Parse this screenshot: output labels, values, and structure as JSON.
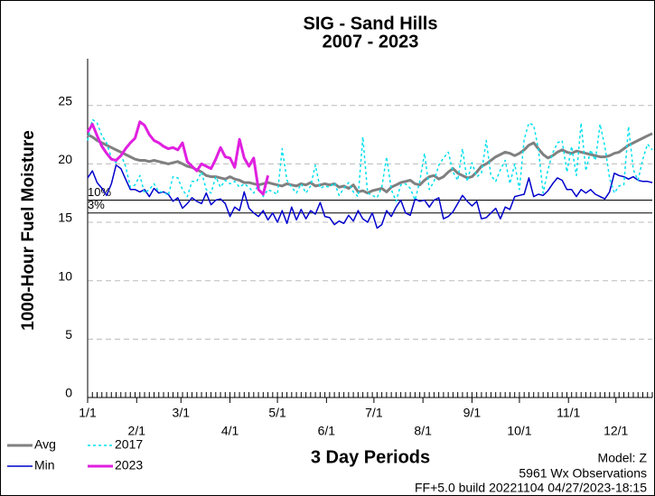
{
  "chart_data": {
    "type": "line",
    "title": "SIG - Sand Hills",
    "subtitle": "2007 - 2023",
    "y_label": "1000-Hour Fuel Moisture",
    "x_label": "3 Day Periods",
    "notes": [
      "Model: Z",
      "5961 Wx Observations",
      "FF+5.0 build 20221104 04/27/2023-18:15"
    ],
    "xlim": [
      0,
      357
    ],
    "ylim": [
      0,
      29
    ],
    "yticks": [
      0,
      5,
      10,
      15,
      20,
      25
    ],
    "xticks": [
      {
        "value": 0,
        "label": "1/1"
      },
      {
        "value": 31,
        "label": "2/1"
      },
      {
        "value": 59,
        "label": "3/1"
      },
      {
        "value": 90,
        "label": "4/1"
      },
      {
        "value": 120,
        "label": "5/1"
      },
      {
        "value": 151,
        "label": "6/1"
      },
      {
        "value": 181,
        "label": "7/1"
      },
      {
        "value": 212,
        "label": "8/1"
      },
      {
        "value": 243,
        "label": "9/1"
      },
      {
        "value": 273,
        "label": "10/1"
      },
      {
        "value": 304,
        "label": "11/1"
      },
      {
        "value": 334,
        "label": "12/1"
      }
    ],
    "grid": true,
    "thresholds": [
      {
        "label": "10%",
        "value": 16.9
      },
      {
        "label": "3%",
        "value": 15.8
      }
    ],
    "x": [
      0,
      3,
      6,
      9,
      12,
      15,
      18,
      21,
      24,
      27,
      30,
      33,
      36,
      39,
      42,
      45,
      48,
      51,
      54,
      57,
      60,
      63,
      66,
      69,
      72,
      75,
      78,
      81,
      84,
      87,
      90,
      93,
      96,
      99,
      102,
      105,
      108,
      111,
      114,
      117,
      120,
      123,
      126,
      129,
      132,
      135,
      138,
      141,
      144,
      147,
      150,
      153,
      156,
      159,
      162,
      165,
      168,
      171,
      174,
      177,
      180,
      183,
      186,
      189,
      192,
      195,
      198,
      201,
      204,
      207,
      210,
      213,
      216,
      219,
      222,
      225,
      228,
      231,
      234,
      237,
      240,
      243,
      246,
      249,
      252,
      255,
      258,
      261,
      264,
      267,
      270,
      273,
      276,
      279,
      282,
      285,
      288,
      291,
      294,
      297,
      300,
      303,
      306,
      309,
      312,
      315,
      318,
      321,
      324,
      327,
      330,
      333,
      336,
      339,
      342,
      345,
      348,
      351,
      354,
      357
    ],
    "series": [
      {
        "name": "Avg",
        "color": "#808080",
        "line_style": "solid",
        "values": [
          22.5,
          22.3,
          22.0,
          21.8,
          21.6,
          21.4,
          21.2,
          21.0,
          20.8,
          20.6,
          20.4,
          20.3,
          20.3,
          20.2,
          20.3,
          20.2,
          20.1,
          20.0,
          20.1,
          20.2,
          20.0,
          19.8,
          19.7,
          19.5,
          19.3,
          19.0,
          18.9,
          18.9,
          18.8,
          18.7,
          18.9,
          18.7,
          18.6,
          18.4,
          18.4,
          18.3,
          18.2,
          18.3,
          18.4,
          18.3,
          18.2,
          18.1,
          18.3,
          18.2,
          18.1,
          18.3,
          18.2,
          18.4,
          18.1,
          18.2,
          18.3,
          18.2,
          18.3,
          18.0,
          18.1,
          17.9,
          18.2,
          17.6,
          17.7,
          17.5,
          17.7,
          17.8,
          17.9,
          17.6,
          18.0,
          18.2,
          18.4,
          18.5,
          18.6,
          18.3,
          18.2,
          18.6,
          18.9,
          19.0,
          18.7,
          18.9,
          19.3,
          19.6,
          19.2,
          19.0,
          18.8,
          18.9,
          19.3,
          19.8,
          20.0,
          20.3,
          20.6,
          20.8,
          21.0,
          20.9,
          20.7,
          20.9,
          21.2,
          21.6,
          21.8,
          21.3,
          20.8,
          20.5,
          20.7,
          21.0,
          21.2,
          21.0,
          20.9,
          21.1,
          21.0,
          20.9,
          20.8,
          20.7,
          20.6,
          20.6,
          20.7,
          20.9,
          21.0,
          21.3,
          21.6,
          21.8,
          22.0,
          22.2,
          22.4,
          22.6
        ]
      },
      {
        "name": "Min",
        "color": "#0000cc",
        "line_style": "solid",
        "values": [
          18.8,
          19.4,
          18.4,
          17.9,
          17.3,
          18.3,
          19.9,
          19.6,
          18.7,
          17.8,
          17.8,
          17.6,
          17.8,
          17.2,
          17.9,
          17.5,
          17.6,
          17.4,
          16.8,
          17.1,
          16.2,
          16.6,
          17.1,
          16.8,
          16.6,
          17.5,
          16.5,
          16.9,
          17.0,
          16.6,
          15.5,
          16.3,
          16.0,
          17.6,
          16.2,
          15.8,
          15.5,
          16.0,
          15.2,
          15.8,
          15.0,
          16.0,
          14.9,
          16.3,
          15.2,
          16.1,
          15.3,
          16.0,
          15.7,
          16.7,
          15.5,
          15.4,
          14.8,
          15.1,
          14.9,
          15.6,
          15.1,
          16.0,
          15.3,
          15.0,
          15.8,
          14.5,
          14.8,
          16.0,
          15.5,
          16.3,
          16.9,
          15.8,
          15.6,
          17.0,
          16.8,
          16.9,
          16.3,
          16.9,
          17.1,
          15.3,
          15.5,
          15.9,
          16.6,
          17.3,
          16.8,
          16.4,
          16.8,
          15.3,
          15.4,
          15.8,
          16.2,
          15.3,
          16.3,
          16.1,
          17.2,
          17.3,
          17.4,
          18.8,
          17.2,
          17.4,
          17.3,
          17.7,
          18.3,
          18.8,
          18.6,
          17.8,
          17.8,
          17.2,
          17.8,
          17.5,
          17.8,
          17.4,
          17.2,
          17.0,
          17.6,
          19.2,
          19.0,
          18.9,
          18.7,
          18.9,
          18.6,
          18.5,
          18.5,
          18.4
        ]
      },
      {
        "name": "2017",
        "color": "#00e0ee",
        "line_style": "dotted",
        "values": [
          22.0,
          23.8,
          23.5,
          22.4,
          21.8,
          20.5,
          20.1,
          20.8,
          19.8,
          18.0,
          18.2,
          19.0,
          17.5,
          17.8,
          18.3,
          17.6,
          17.6,
          17.3,
          18.9,
          18.8,
          17.8,
          17.2,
          18.5,
          18.5,
          19.3,
          17.8,
          17.5,
          18.9,
          18.0,
          18.6,
          18.3,
          18.5,
          18.0,
          18.3,
          18.0,
          17.5,
          18.2,
          17.2,
          17.8,
          17.6,
          17.4,
          21.3,
          18.6,
          18.0,
          17.5,
          18.3,
          17.5,
          18.1,
          19.9,
          17.9,
          18.1,
          18.0,
          18.4,
          17.3,
          17.9,
          18.4,
          17.6,
          17.2,
          22.3,
          17.5,
          17.3,
          17.1,
          18.0,
          20.6,
          17.8,
          16.8,
          18.2,
          18.3,
          17.9,
          16.9,
          18.5,
          20.9,
          17.8,
          18.5,
          19.9,
          20.5,
          21.0,
          19.3,
          18.6,
          21.3,
          18.5,
          20.1,
          18.9,
          19.2,
          22.0,
          19.0,
          18.5,
          19.5,
          20.3,
          18.3,
          20.0,
          17.8,
          22.1,
          23.5,
          23.3,
          21.3,
          17.5,
          19.5,
          20.9,
          21.8,
          22.0,
          19.3,
          21.5,
          19.0,
          23.5,
          19.4,
          21.2,
          20.3,
          23.4,
          21.5,
          18.8,
          17.5,
          18.1,
          18.2,
          23.2,
          19.5,
          18.6,
          20.4,
          21.7,
          21.2
        ]
      },
      {
        "name": "2023",
        "color": "#e020e0",
        "line_style": "solid",
        "values": [
          22.7,
          23.4,
          22.4,
          21.5,
          20.9,
          20.4,
          20.3,
          20.7,
          21.3,
          21.8,
          22.2,
          23.6,
          23.3,
          22.5,
          22.0,
          21.8,
          21.5,
          21.3,
          21.4,
          21.2,
          21.8,
          20.2,
          19.8,
          19.4,
          20.0,
          19.8,
          19.6,
          20.4,
          21.4,
          20.6,
          20.5,
          19.7,
          22.1,
          20.5,
          19.8,
          20.5,
          17.8,
          17.4,
          19.0,
          null,
          null,
          null,
          null,
          null,
          null,
          null,
          null,
          null,
          null,
          null,
          null,
          null,
          null,
          null,
          null,
          null,
          null,
          null,
          null,
          null,
          null,
          null,
          null,
          null,
          null,
          null,
          null,
          null,
          null,
          null,
          null,
          null,
          null,
          null,
          null,
          null,
          null,
          null,
          null,
          null,
          null,
          null,
          null,
          null,
          null,
          null,
          null,
          null,
          null,
          null,
          null,
          null,
          null,
          null,
          null,
          null,
          null,
          null,
          null,
          null,
          null,
          null,
          null,
          null,
          null,
          null,
          null,
          null,
          null,
          null,
          null,
          null,
          null,
          null,
          null,
          null,
          null,
          null,
          null,
          null
        ]
      }
    ]
  }
}
